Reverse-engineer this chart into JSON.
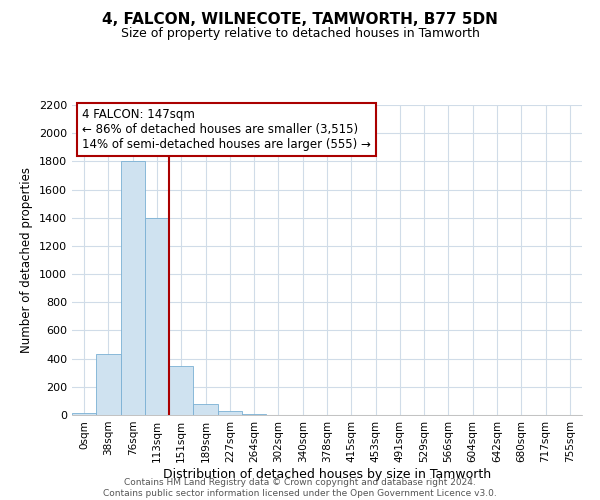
{
  "title": "4, FALCON, WILNECOTE, TAMWORTH, B77 5DN",
  "subtitle": "Size of property relative to detached houses in Tamworth",
  "xlabel": "Distribution of detached houses by size in Tamworth",
  "ylabel": "Number of detached properties",
  "bar_labels": [
    "0sqm",
    "38sqm",
    "76sqm",
    "113sqm",
    "151sqm",
    "189sqm",
    "227sqm",
    "264sqm",
    "302sqm",
    "340sqm",
    "378sqm",
    "415sqm",
    "453sqm",
    "491sqm",
    "529sqm",
    "566sqm",
    "604sqm",
    "642sqm",
    "680sqm",
    "717sqm",
    "755sqm"
  ],
  "bar_values": [
    15,
    430,
    1800,
    1400,
    350,
    80,
    25,
    5,
    0,
    0,
    0,
    0,
    0,
    0,
    0,
    0,
    0,
    0,
    0,
    0,
    0
  ],
  "bar_color": "#cfe2f0",
  "bar_edge_color": "#7ab0d4",
  "grid_color": "#d0dce8",
  "ylim": [
    0,
    2200
  ],
  "yticks": [
    0,
    200,
    400,
    600,
    800,
    1000,
    1200,
    1400,
    1600,
    1800,
    2000,
    2200
  ],
  "annotation_box_text_line1": "4 FALCON: 147sqm",
  "annotation_box_text_line2": "← 86% of detached houses are smaller (3,515)",
  "annotation_box_text_line3": "14% of semi-detached houses are larger (555) →",
  "vline_color": "#aa0000",
  "box_facecolor": "white",
  "box_edgecolor": "#aa0000",
  "footer_line1": "Contains HM Land Registry data © Crown copyright and database right 2024.",
  "footer_line2": "Contains public sector information licensed under the Open Government Licence v3.0.",
  "title_fontsize": 11,
  "subtitle_fontsize": 9,
  "ylabel_fontsize": 8.5,
  "xlabel_fontsize": 9,
  "tick_fontsize": 8,
  "xtick_fontsize": 7.5,
  "annotation_fontsize": 8.5,
  "bar_width": 1.0,
  "vline_bar_index": 4.5
}
